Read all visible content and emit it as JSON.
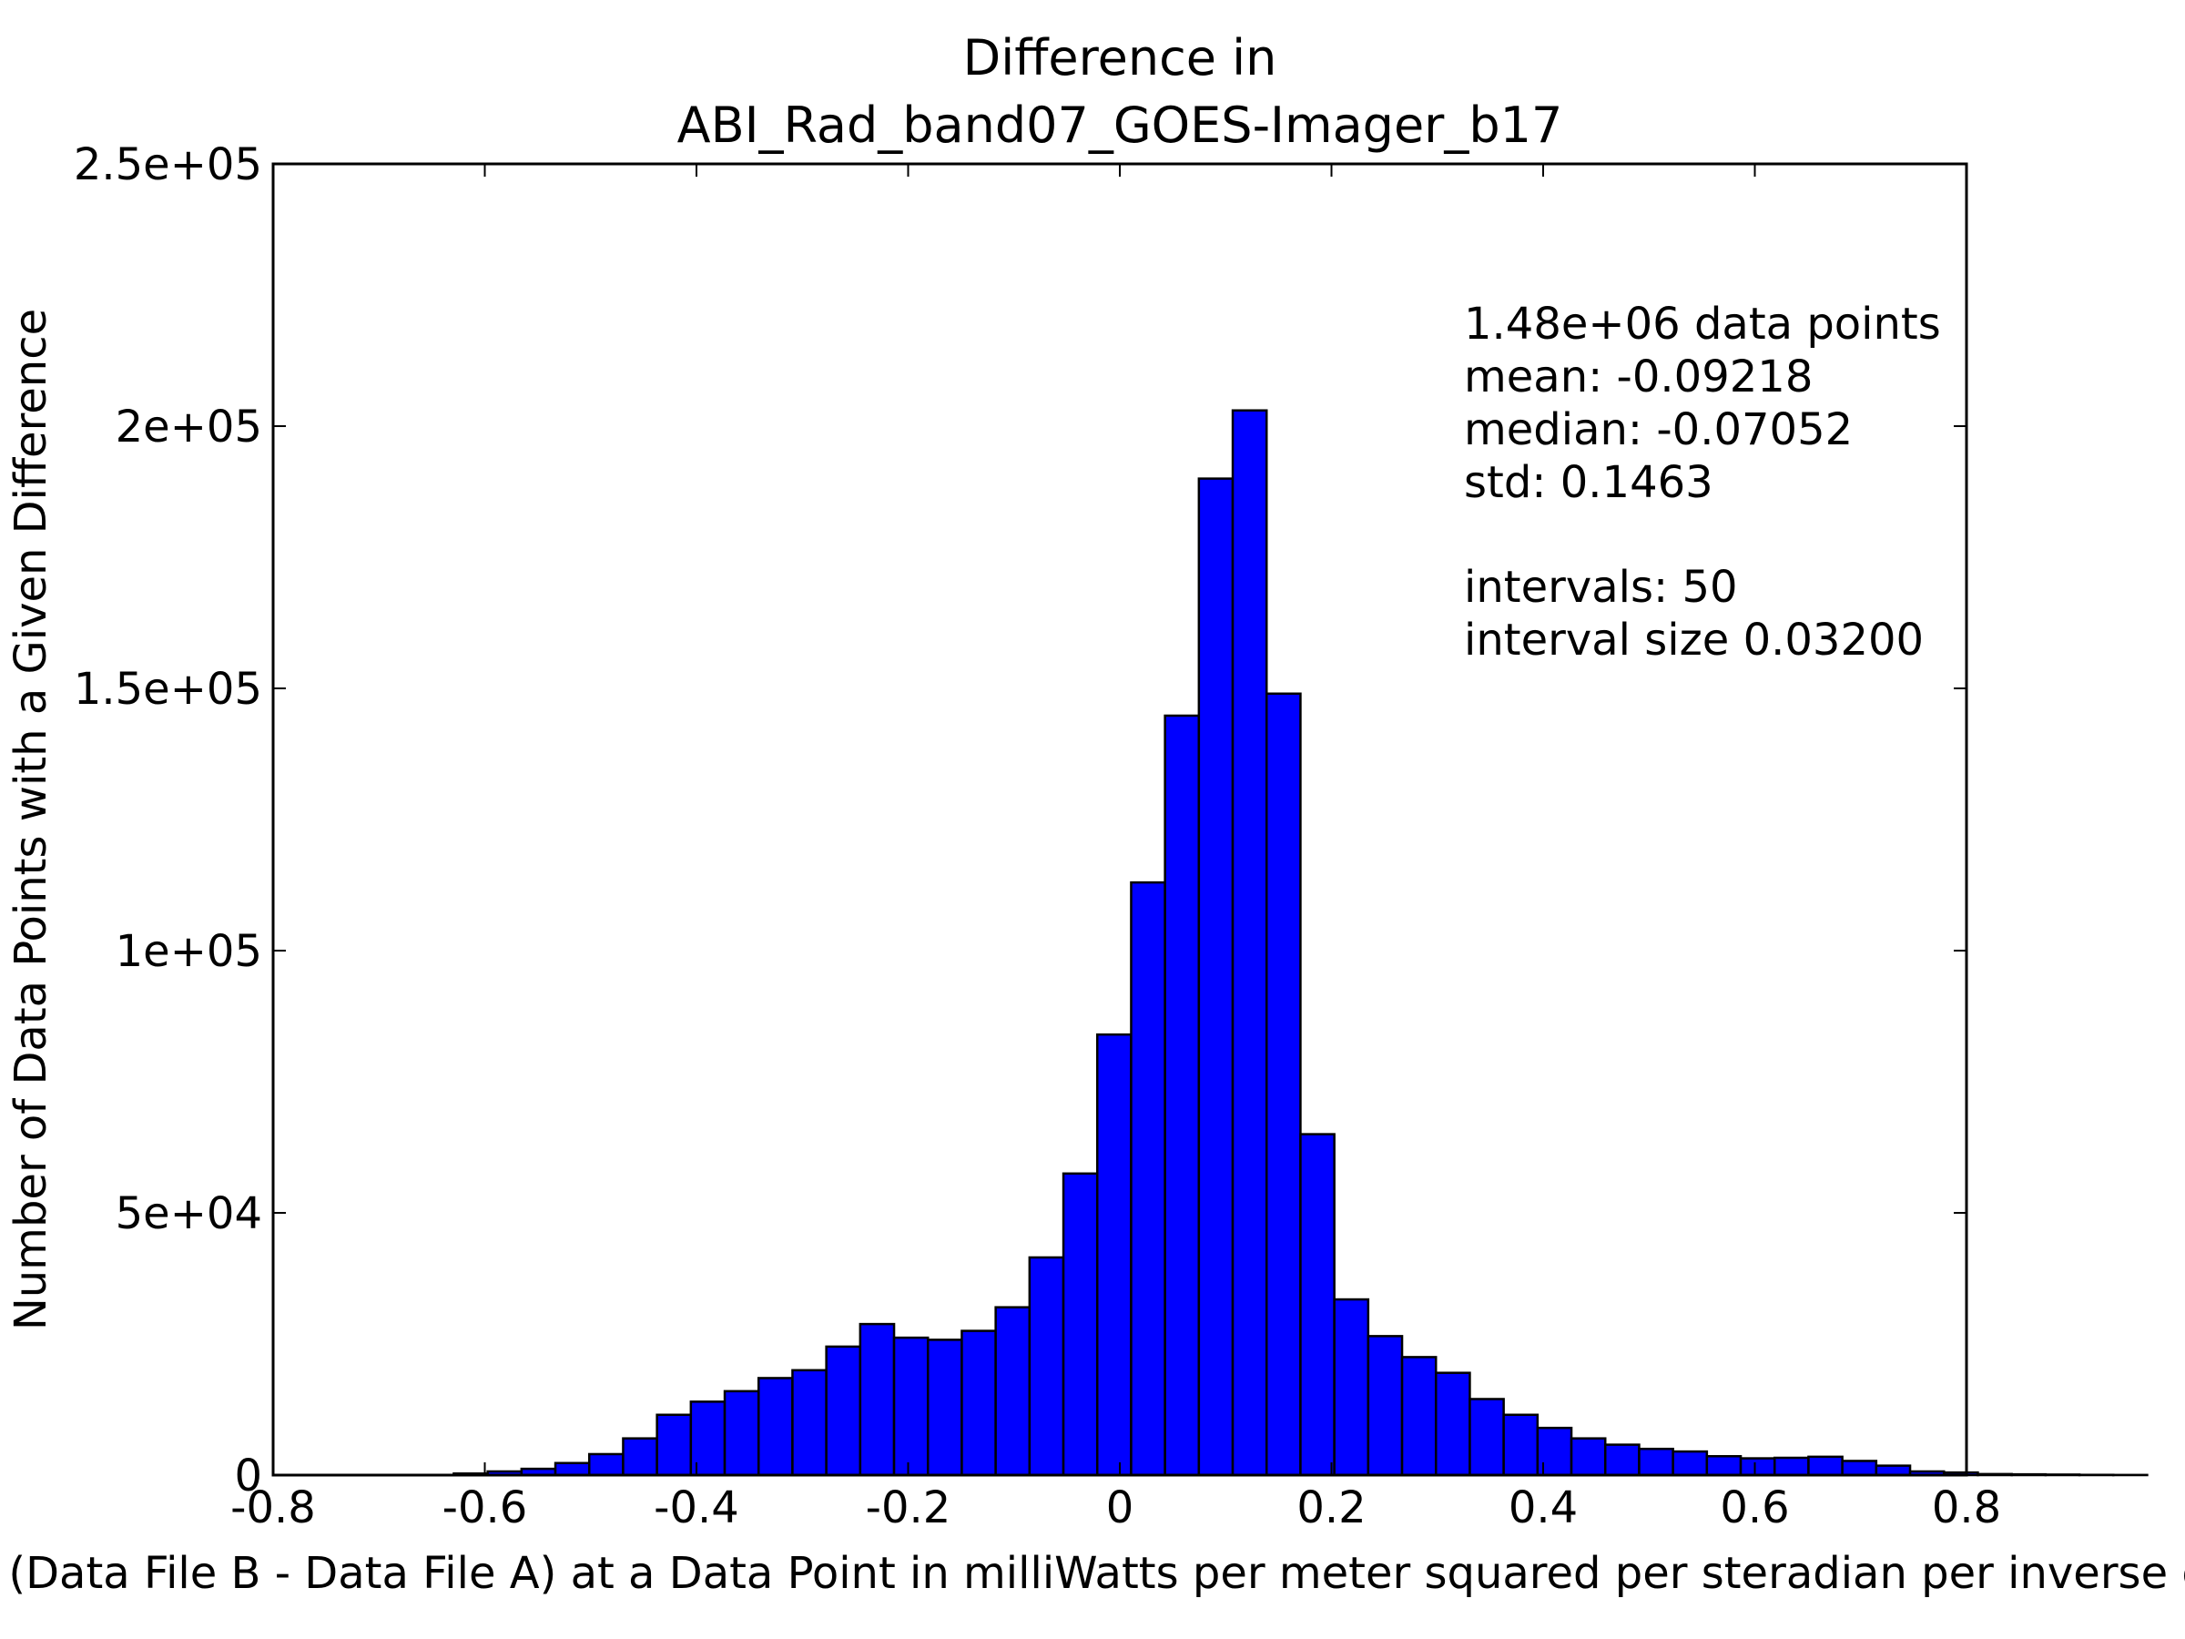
{
  "chart_data": {
    "type": "bar",
    "title_line1": "Difference in",
    "title_line2": "ABI_Rad_band07_GOES-Imager_b17",
    "xlabel": "Value of (Data File B - Data File A) at a Data Point in milliWatts per meter squared per steradian per inverse centimeter",
    "ylabel": "Number of Data Points with a Given Difference",
    "xlim": [
      -0.8,
      0.8
    ],
    "ylim": [
      0,
      250000
    ],
    "x_ticks": [
      {
        "value": -0.8,
        "label": "-0.8"
      },
      {
        "value": -0.6,
        "label": "-0.6"
      },
      {
        "value": -0.4,
        "label": "-0.4"
      },
      {
        "value": -0.2,
        "label": "-0.2"
      },
      {
        "value": 0,
        "label": "0"
      },
      {
        "value": 0.2,
        "label": "0.2"
      },
      {
        "value": 0.4,
        "label": "0.4"
      },
      {
        "value": 0.6,
        "label": "0.6"
      },
      {
        "value": 0.8,
        "label": "0.8"
      }
    ],
    "y_ticks": [
      {
        "value": 0,
        "label": "0"
      },
      {
        "value": 50000,
        "label": "5e+04"
      },
      {
        "value": 100000,
        "label": "1e+05"
      },
      {
        "value": 150000,
        "label": "1.5e+05"
      },
      {
        "value": 200000,
        "label": "2e+05"
      },
      {
        "value": 250000,
        "label": "2.5e+05"
      }
    ],
    "grid": false,
    "bar_color": "#0000ff",
    "bar_edge_color": "#000000",
    "bin_start": -0.6293,
    "bin_width": 0.032,
    "counts": [
      300,
      700,
      1200,
      2300,
      4000,
      7000,
      11500,
      14000,
      16000,
      18500,
      20000,
      24500,
      28800,
      26200,
      25800,
      27500,
      32000,
      41500,
      57500,
      84000,
      113000,
      144800,
      190000,
      203000,
      149000,
      65000,
      33500,
      26500,
      22500,
      19500,
      14500,
      11500,
      9000,
      7000,
      5800,
      5000,
      4500,
      3600,
      3200,
      3300,
      3500,
      2700,
      1800,
      700,
      500,
      200,
      150,
      100,
      50,
      30
    ],
    "stats": {
      "count": "1.48e+06 data points",
      "mean": "mean: -0.09218",
      "median": "median: -0.07052",
      "std": "std: 0.1463",
      "intervals": "intervals: 50",
      "interval_size": "interval size 0.03200"
    }
  }
}
